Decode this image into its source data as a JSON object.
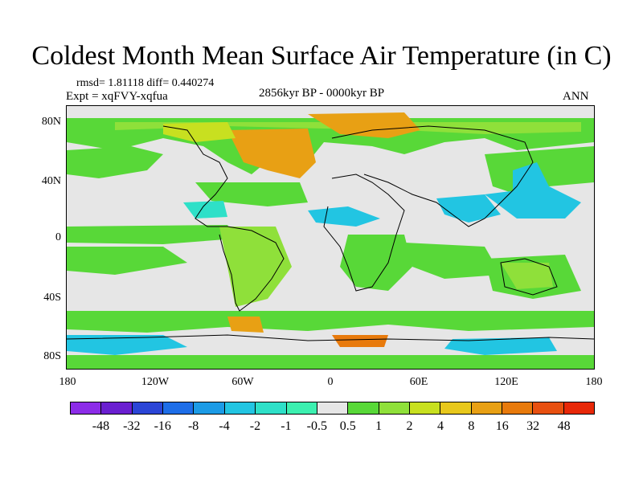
{
  "title": "Coldest Month Mean Surface Air Temperature (in C)",
  "stats": "rmsd= 1.81118 diff= 0.440274",
  "experiment": "Expt = xqFVY-xqfua",
  "period": "2856kyr BP - 0000kyr BP",
  "season": "ANN",
  "lat_labels": [
    "80N",
    "40N",
    "0",
    "40S",
    "80S"
  ],
  "lon_labels": [
    "180",
    "120W",
    "60W",
    "0",
    "60E",
    "120E",
    "180"
  ],
  "colorbar": {
    "labels": [
      "-48",
      "-32",
      "-16",
      "-8",
      "-4",
      "-2",
      "-1",
      "-0.5",
      "0.5",
      "1",
      "2",
      "4",
      "8",
      "16",
      "32",
      "48"
    ],
    "colors": [
      "#8c2ce8",
      "#6a1fd0",
      "#2b45d6",
      "#1e6ee8",
      "#1c9be6",
      "#22c5e2",
      "#2ee0c8",
      "#3cf0b0",
      "#e6e6e6",
      "#58d838",
      "#8fe03a",
      "#c8e020",
      "#e8c81c",
      "#e8a014",
      "#e87a0c",
      "#e85010",
      "#e82808"
    ]
  },
  "regions": {
    "background": "#e6e6e6",
    "ocean_green": "#58d838",
    "light_green": "#8fe03a",
    "yellow_green": "#c8e020",
    "orange": "#e8a014",
    "dark_orange": "#e87a0c",
    "cyan": "#22c5e2",
    "aqua": "#2ee0c8"
  }
}
